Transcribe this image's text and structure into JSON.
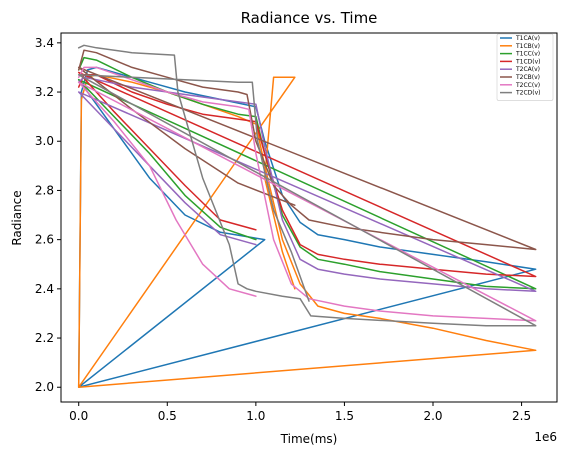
{
  "chart_data": {
    "type": "line",
    "title": "Radiance vs. Time",
    "xlabel": "Time(ms)",
    "ylabel": "Radiance",
    "x_multiplier_label": "1e6",
    "xlim": [
      -100000,
      2700000
    ],
    "ylim": [
      1.94,
      3.44
    ],
    "xticks": [
      0,
      500000,
      1000000,
      1500000,
      2000000,
      2500000
    ],
    "xtick_labels": [
      "0.0",
      "0.5",
      "1.0",
      "1.5",
      "2.0",
      "2.5"
    ],
    "yticks": [
      2.0,
      2.2,
      2.4,
      2.6,
      2.8,
      3.0,
      3.2,
      3.4
    ],
    "ytick_labels": [
      "2.0",
      "2.2",
      "2.4",
      "2.6",
      "2.8",
      "3.0",
      "3.2",
      "3.4"
    ],
    "grid": false,
    "legend_position": "top-right",
    "series": [
      {
        "name": "T1CA(v)",
        "color": "#1f77b4",
        "points": [
          [
            0,
            2.0
          ],
          [
            15000,
            3.2
          ],
          [
            50000,
            3.29
          ],
          [
            100000,
            3.3
          ],
          [
            200000,
            3.28
          ],
          [
            400000,
            3.24
          ],
          [
            600000,
            3.2
          ],
          [
            800000,
            3.17
          ],
          [
            1000000,
            3.14
          ],
          [
            1050000,
            3.0
          ],
          [
            1150000,
            2.78
          ],
          [
            1250000,
            2.67
          ],
          [
            1350000,
            2.62
          ],
          [
            1500000,
            2.6
          ],
          [
            1700000,
            2.57
          ],
          [
            2000000,
            2.54
          ],
          [
            2300000,
            2.51
          ],
          [
            2580000,
            2.48
          ],
          [
            0,
            2.0
          ],
          [
            1050000,
            2.6
          ],
          [
            800000,
            2.63
          ],
          [
            600000,
            2.7
          ],
          [
            400000,
            2.85
          ],
          [
            200000,
            3.05
          ],
          [
            0,
            3.25
          ]
        ]
      },
      {
        "name": "T1CB(v)",
        "color": "#ff7f0e",
        "points": [
          [
            0,
            2.0
          ],
          [
            15000,
            3.17
          ],
          [
            50000,
            3.26
          ],
          [
            100000,
            3.27
          ],
          [
            300000,
            3.24
          ],
          [
            500000,
            3.2
          ],
          [
            700000,
            3.15
          ],
          [
            900000,
            3.1
          ],
          [
            1000000,
            3.07
          ],
          [
            1050000,
            2.9
          ],
          [
            1150000,
            2.6
          ],
          [
            1250000,
            2.42
          ],
          [
            1350000,
            2.33
          ],
          [
            1500000,
            2.3
          ],
          [
            1700000,
            2.28
          ],
          [
            2000000,
            2.24
          ],
          [
            2300000,
            2.19
          ],
          [
            2580000,
            2.15
          ],
          [
            0,
            2.0
          ],
          [
            1220000,
            3.26
          ],
          [
            1100000,
            3.26
          ],
          [
            1050000,
            2.85
          ],
          [
            1150000,
            2.55
          ],
          [
            1220000,
            2.4
          ]
        ]
      },
      {
        "name": "T1CC(v)",
        "color": "#2ca02c",
        "points": [
          [
            0,
            3.29
          ],
          [
            30000,
            3.34
          ],
          [
            100000,
            3.33
          ],
          [
            300000,
            3.26
          ],
          [
            500000,
            3.2
          ],
          [
            700000,
            3.15
          ],
          [
            900000,
            3.11
          ],
          [
            1000000,
            3.1
          ],
          [
            1050000,
            2.95
          ],
          [
            1150000,
            2.7
          ],
          [
            1250000,
            2.57
          ],
          [
            1350000,
            2.52
          ],
          [
            1500000,
            2.5
          ],
          [
            1700000,
            2.47
          ],
          [
            2000000,
            2.44
          ],
          [
            2300000,
            2.41
          ],
          [
            2580000,
            2.4
          ],
          [
            0,
            3.25
          ],
          [
            200000,
            3.1
          ],
          [
            400000,
            2.95
          ],
          [
            600000,
            2.78
          ],
          [
            800000,
            2.65
          ],
          [
            1000000,
            2.6
          ]
        ]
      },
      {
        "name": "T1CD(v)",
        "color": "#d62728",
        "points": [
          [
            0,
            3.22
          ],
          [
            30000,
            3.27
          ],
          [
            100000,
            3.27
          ],
          [
            300000,
            3.2
          ],
          [
            500000,
            3.15
          ],
          [
            700000,
            3.11
          ],
          [
            900000,
            3.09
          ],
          [
            1000000,
            3.08
          ],
          [
            1050000,
            2.95
          ],
          [
            1150000,
            2.72
          ],
          [
            1250000,
            2.58
          ],
          [
            1350000,
            2.54
          ],
          [
            1500000,
            2.52
          ],
          [
            1700000,
            2.5
          ],
          [
            2000000,
            2.48
          ],
          [
            2300000,
            2.46
          ],
          [
            2580000,
            2.45
          ],
          [
            0,
            3.28
          ],
          [
            200000,
            3.12
          ],
          [
            400000,
            2.97
          ],
          [
            600000,
            2.82
          ],
          [
            800000,
            2.68
          ],
          [
            1000000,
            2.64
          ]
        ]
      },
      {
        "name": "T2CA(v)",
        "color": "#9467bd",
        "points": [
          [
            0,
            3.24
          ],
          [
            30000,
            3.26
          ],
          [
            100000,
            3.25
          ],
          [
            300000,
            3.22
          ],
          [
            500000,
            3.2
          ],
          [
            700000,
            3.18
          ],
          [
            900000,
            3.16
          ],
          [
            1000000,
            3.15
          ],
          [
            1050000,
            2.98
          ],
          [
            1150000,
            2.68
          ],
          [
            1250000,
            2.52
          ],
          [
            1350000,
            2.48
          ],
          [
            1500000,
            2.46
          ],
          [
            1700000,
            2.44
          ],
          [
            2000000,
            2.42
          ],
          [
            2300000,
            2.4
          ],
          [
            2580000,
            2.39
          ],
          [
            0,
            3.2
          ],
          [
            200000,
            3.05
          ],
          [
            400000,
            2.9
          ],
          [
            600000,
            2.75
          ],
          [
            800000,
            2.62
          ],
          [
            1000000,
            2.58
          ]
        ]
      },
      {
        "name": "T2CB(v)",
        "color": "#8c564b",
        "points": [
          [
            0,
            3.29
          ],
          [
            30000,
            3.37
          ],
          [
            100000,
            3.36
          ],
          [
            300000,
            3.3
          ],
          [
            500000,
            3.26
          ],
          [
            700000,
            3.22
          ],
          [
            900000,
            3.2
          ],
          [
            950000,
            3.19
          ],
          [
            1000000,
            3.0
          ],
          [
            1100000,
            2.82
          ],
          [
            1200000,
            2.74
          ],
          [
            1300000,
            2.68
          ],
          [
            1500000,
            2.65
          ],
          [
            1700000,
            2.63
          ],
          [
            2000000,
            2.6
          ],
          [
            2300000,
            2.58
          ],
          [
            2580000,
            2.56
          ],
          [
            0,
            3.3
          ],
          [
            300000,
            3.13
          ],
          [
            600000,
            2.97
          ],
          [
            900000,
            2.83
          ],
          [
            1220000,
            2.74
          ]
        ]
      },
      {
        "name": "T2CC(v)",
        "color": "#e377c2",
        "points": [
          [
            0,
            3.26
          ],
          [
            30000,
            3.3
          ],
          [
            100000,
            3.3
          ],
          [
            300000,
            3.25
          ],
          [
            500000,
            3.2
          ],
          [
            700000,
            3.16
          ],
          [
            900000,
            3.14
          ],
          [
            960000,
            3.13
          ],
          [
            1000000,
            2.95
          ],
          [
            1100000,
            2.6
          ],
          [
            1200000,
            2.42
          ],
          [
            1300000,
            2.36
          ],
          [
            1500000,
            2.33
          ],
          [
            1700000,
            2.31
          ],
          [
            2000000,
            2.29
          ],
          [
            2300000,
            2.28
          ],
          [
            2580000,
            2.27
          ],
          [
            0,
            3.24
          ],
          [
            200000,
            3.08
          ],
          [
            400000,
            2.9
          ],
          [
            550000,
            2.68
          ],
          [
            700000,
            2.5
          ],
          [
            850000,
            2.4
          ],
          [
            1000000,
            2.37
          ]
        ]
      },
      {
        "name": "T2CD(v)",
        "color": "#7f7f7f",
        "points": [
          [
            0,
            3.38
          ],
          [
            30000,
            3.39
          ],
          [
            100000,
            3.38
          ],
          [
            300000,
            3.36
          ],
          [
            540000,
            3.35
          ],
          [
            560000,
            3.2
          ],
          [
            700000,
            2.85
          ],
          [
            850000,
            2.58
          ],
          [
            900000,
            2.42
          ],
          [
            950000,
            2.4
          ],
          [
            1000000,
            2.39
          ],
          [
            1150000,
            2.37
          ],
          [
            1250000,
            2.36
          ],
          [
            1310000,
            2.29
          ],
          [
            1500000,
            2.28
          ],
          [
            2000000,
            2.26
          ],
          [
            2300000,
            2.25
          ],
          [
            2580000,
            2.25
          ],
          [
            0,
            3.27
          ],
          [
            300000,
            3.26
          ],
          [
            600000,
            3.25
          ],
          [
            900000,
            3.24
          ],
          [
            980000,
            3.24
          ],
          [
            1010000,
            3.0
          ],
          [
            1100000,
            2.72
          ],
          [
            1200000,
            2.55
          ],
          [
            1300000,
            2.35
          ]
        ]
      }
    ]
  }
}
